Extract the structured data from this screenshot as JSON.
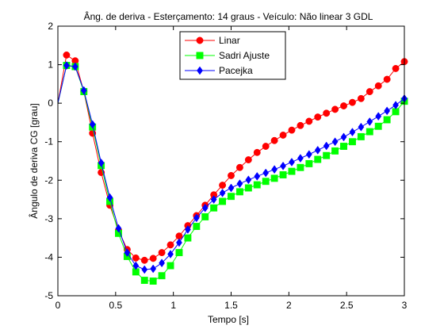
{
  "chart_data": {
    "type": "line",
    "title": "Âng. de deriva - Esterçamento: 14 graus - Veículo: Não linear 3 GDL",
    "xlabel": "Tempo [s]",
    "ylabel": "Ângulo de deriva CG [grau]",
    "xlim": [
      0,
      3
    ],
    "ylim": [
      -5,
      2
    ],
    "xticks": [
      0,
      0.5,
      1,
      1.5,
      2,
      2.5,
      3
    ],
    "xtick_labels": [
      "0",
      "0.5",
      "1",
      "1.5",
      "2",
      "2.5",
      "3"
    ],
    "yticks": [
      2,
      1,
      0,
      -1,
      -2,
      -3,
      -4,
      -5
    ],
    "ytick_labels": [
      "2",
      "1",
      "0",
      "-1",
      "-2",
      "-3",
      "-4",
      "-5"
    ],
    "grid": false,
    "legend_position": "top-center",
    "x": [
      0,
      0.075,
      0.15,
      0.225,
      0.3,
      0.375,
      0.45,
      0.525,
      0.6,
      0.675,
      0.75,
      0.825,
      0.9,
      0.975,
      1.05,
      1.125,
      1.2,
      1.275,
      1.35,
      1.425,
      1.5,
      1.575,
      1.65,
      1.725,
      1.8,
      1.875,
      1.95,
      2.025,
      2.1,
      2.175,
      2.25,
      2.325,
      2.4,
      2.475,
      2.55,
      2.625,
      2.7,
      2.775,
      2.85,
      2.925,
      3.0
    ],
    "series": [
      {
        "name": "Linar",
        "color": "#ff0000",
        "marker": "circle",
        "values": [
          0,
          1.25,
          1.1,
          0.3,
          -0.78,
          -1.8,
          -2.65,
          -3.3,
          -3.8,
          -4.02,
          -4.08,
          -4.03,
          -3.88,
          -3.68,
          -3.45,
          -3.18,
          -2.92,
          -2.65,
          -2.38,
          -2.13,
          -1.88,
          -1.67,
          -1.47,
          -1.28,
          -1.12,
          -0.97,
          -0.83,
          -0.7,
          -0.58,
          -0.47,
          -0.36,
          -0.26,
          -0.16,
          -0.07,
          0.02,
          0.12,
          0.3,
          0.45,
          0.62,
          0.9,
          1.08
        ]
      },
      {
        "name": "Sadri Ajuste",
        "color": "#00ff00",
        "marker": "square",
        "values": [
          0,
          0.98,
          0.95,
          0.3,
          -0.62,
          -1.62,
          -2.55,
          -3.38,
          -3.98,
          -4.38,
          -4.6,
          -4.62,
          -4.48,
          -4.22,
          -3.88,
          -3.5,
          -3.2,
          -2.95,
          -2.72,
          -2.55,
          -2.42,
          -2.3,
          -2.2,
          -2.12,
          -2.03,
          -1.95,
          -1.86,
          -1.77,
          -1.67,
          -1.57,
          -1.46,
          -1.36,
          -1.24,
          -1.12,
          -1.0,
          -0.87,
          -0.74,
          -0.6,
          -0.43,
          -0.22,
          0.05
        ]
      },
      {
        "name": "Pacejka",
        "color": "#0000ff",
        "marker": "diamond",
        "values": [
          0,
          0.98,
          0.95,
          0.33,
          -0.55,
          -1.55,
          -2.45,
          -3.25,
          -3.88,
          -4.22,
          -4.32,
          -4.3,
          -4.15,
          -3.92,
          -3.62,
          -3.28,
          -2.98,
          -2.72,
          -2.5,
          -2.33,
          -2.2,
          -2.09,
          -1.99,
          -1.9,
          -1.81,
          -1.72,
          -1.63,
          -1.53,
          -1.43,
          -1.33,
          -1.22,
          -1.11,
          -1.0,
          -0.88,
          -0.75,
          -0.62,
          -0.48,
          -0.34,
          -0.2,
          -0.05,
          0.12
        ]
      }
    ]
  }
}
